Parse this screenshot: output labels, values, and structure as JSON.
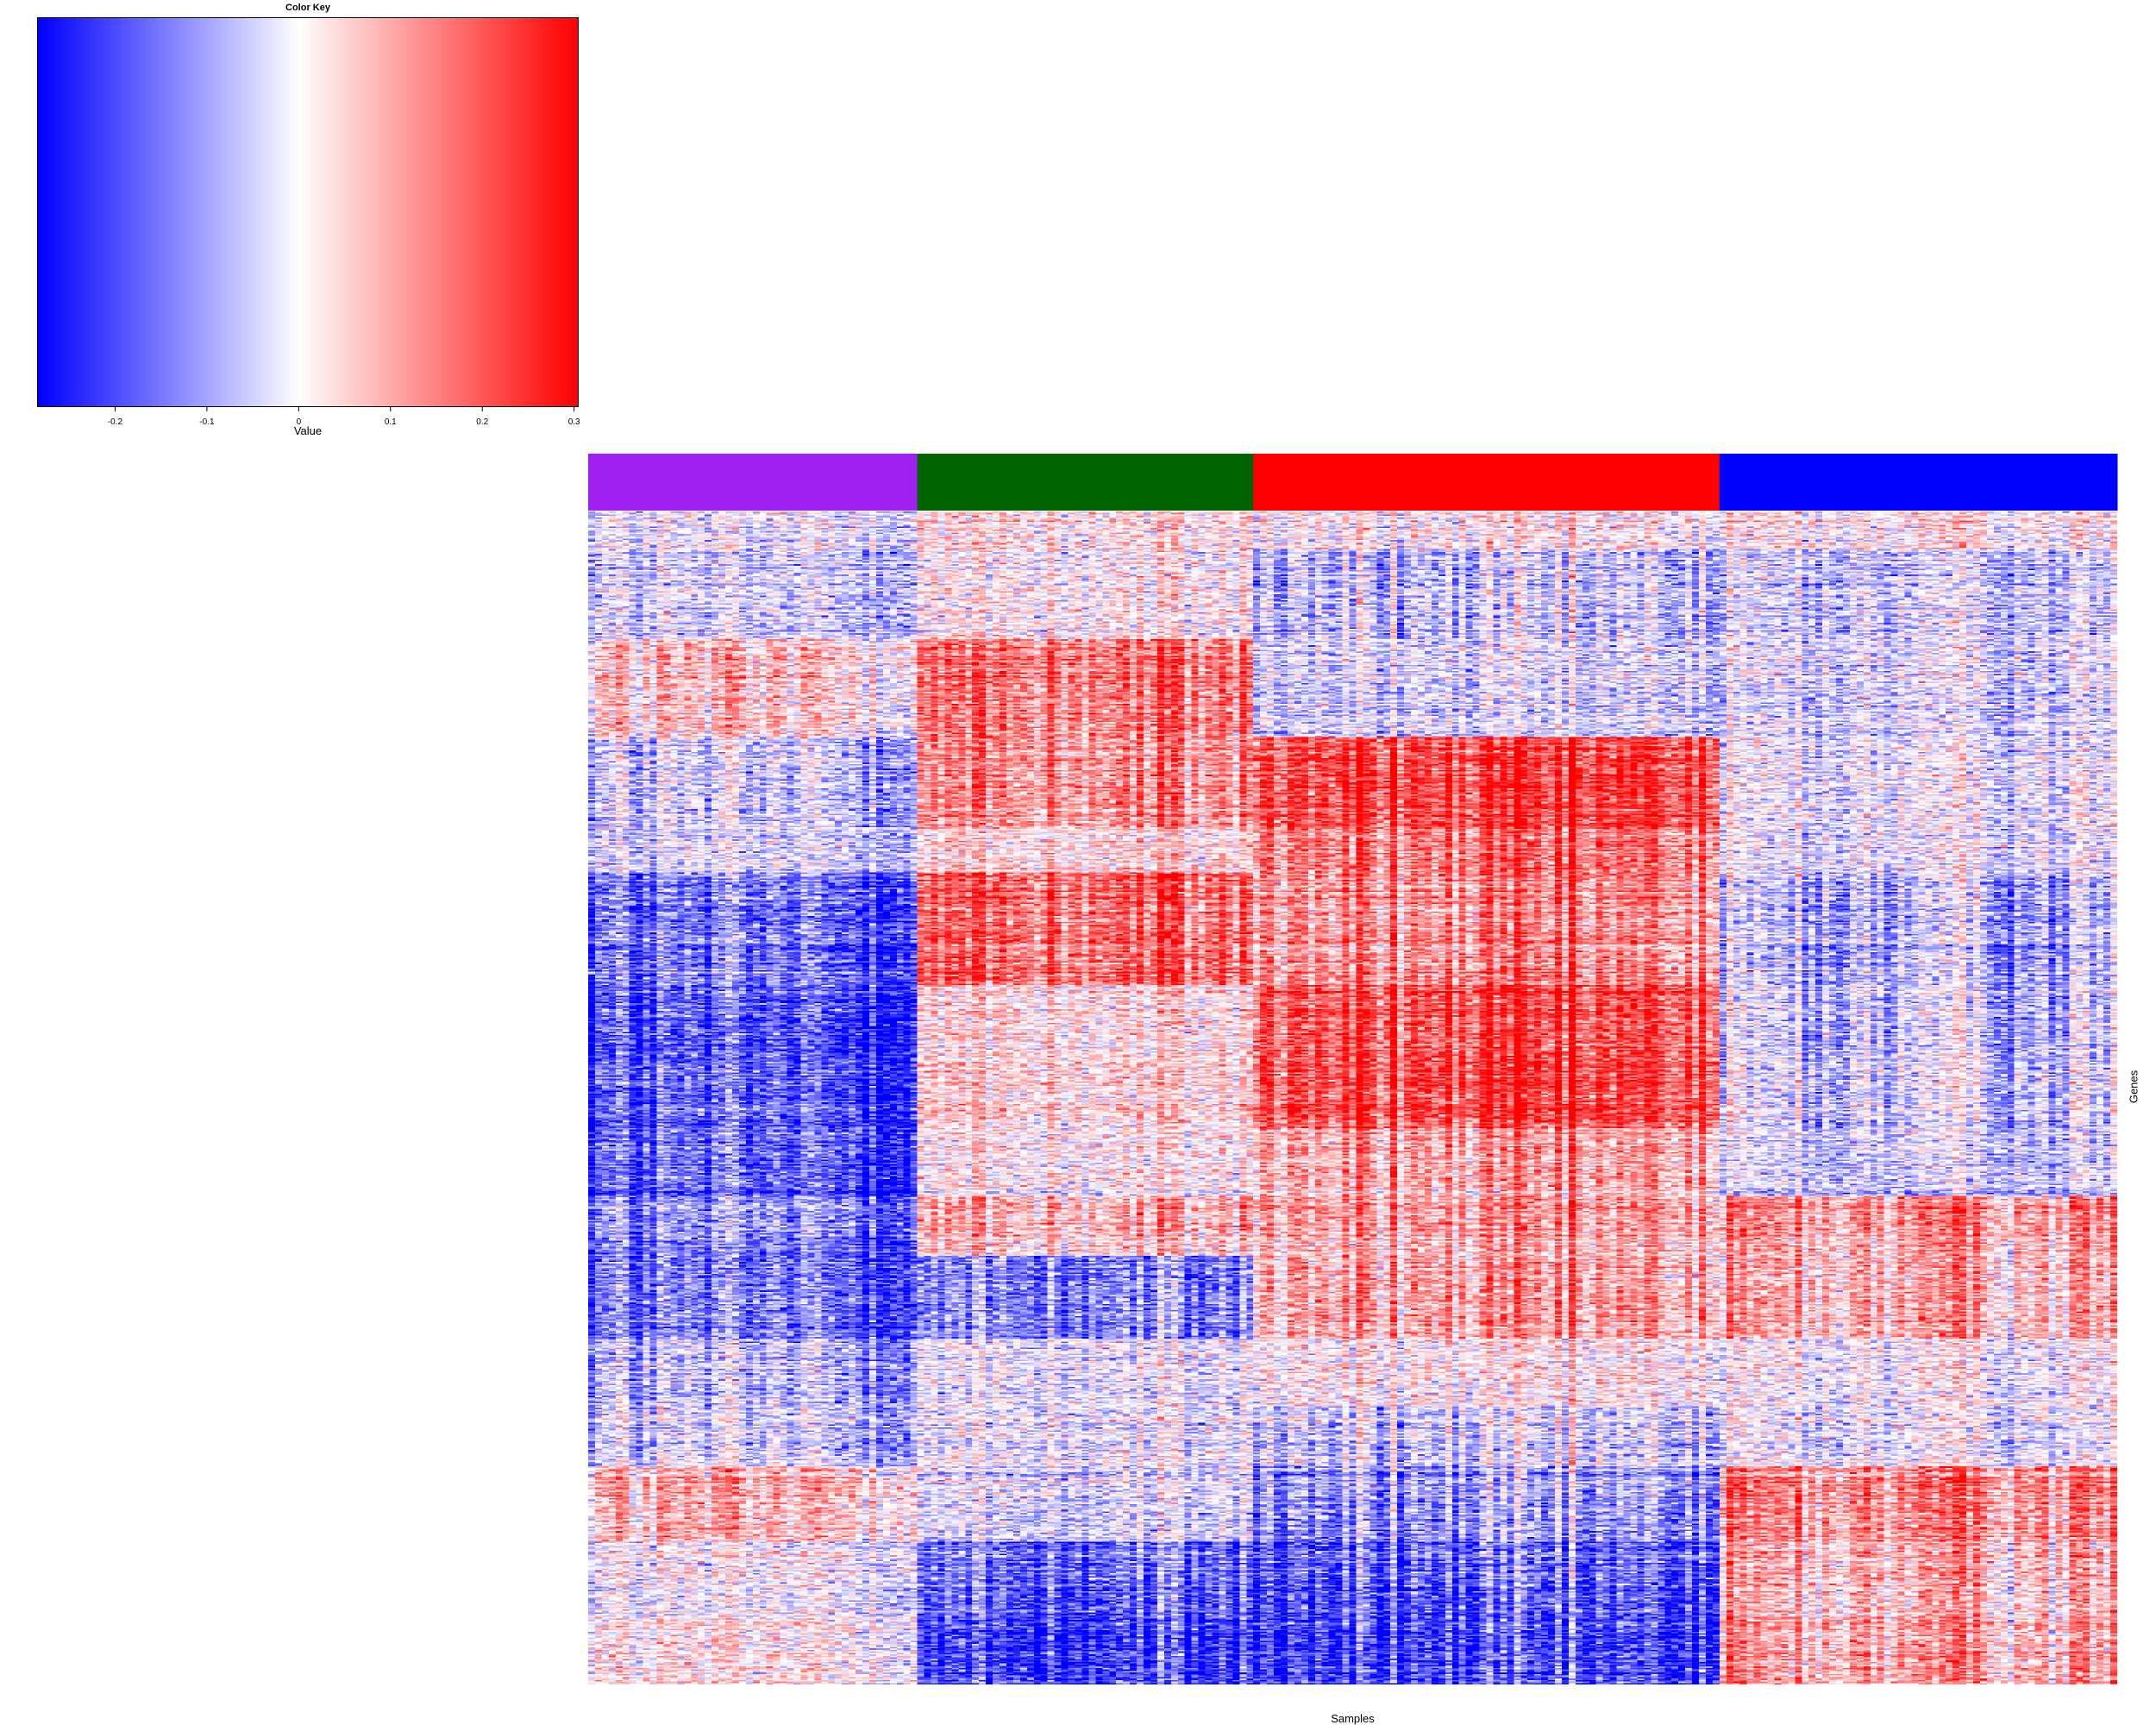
{
  "chart_data": {
    "type": "heatmap",
    "title": "",
    "xlabel": "Samples",
    "ylabel": "Genes",
    "color_key": {
      "title": "Color Key",
      "label": "Value",
      "range": [
        -0.285,
        0.305
      ],
      "ticks": [
        -0.2,
        -0.1,
        0,
        0.1,
        0.2,
        0.3
      ],
      "tick_labels": [
        "-0.2",
        "-0.1",
        "0",
        "0.1",
        "0.2",
        "0.3"
      ],
      "colors": [
        "#0000ff",
        "#ffffff",
        "#ff0000"
      ]
    },
    "sample_groups": [
      {
        "color": "#a020f0",
        "count": 48
      },
      {
        "color": "#006400",
        "count": 49
      },
      {
        "color": "#ff0000",
        "count": 68
      },
      {
        "color": "#0000ff",
        "count": 58
      }
    ],
    "gene_clusters": [
      {
        "rows": 25,
        "means": [
          -0.02,
          0.04,
          0.02,
          0.03
        ]
      },
      {
        "rows": 60,
        "means": [
          -0.05,
          0.02,
          -0.07,
          -0.05
        ]
      },
      {
        "rows": 65,
        "means": [
          0.06,
          0.16,
          -0.05,
          -0.04
        ]
      },
      {
        "rows": 60,
        "means": [
          -0.06,
          0.13,
          0.22,
          -0.02
        ]
      },
      {
        "rows": 30,
        "means": [
          -0.05,
          0.04,
          0.15,
          -0.03
        ]
      },
      {
        "rows": 75,
        "means": [
          -0.16,
          0.18,
          0.13,
          -0.08
        ]
      },
      {
        "rows": 95,
        "means": [
          -0.2,
          0.04,
          0.2,
          -0.06
        ]
      },
      {
        "rows": 45,
        "means": [
          -0.18,
          0.02,
          0.1,
          -0.05
        ]
      },
      {
        "rows": 40,
        "means": [
          -0.14,
          0.08,
          0.1,
          0.12
        ]
      },
      {
        "rows": 55,
        "means": [
          -0.16,
          -0.14,
          0.1,
          0.09
        ]
      },
      {
        "rows": 45,
        "means": [
          -0.08,
          -0.02,
          0.02,
          0.0
        ]
      },
      {
        "rows": 40,
        "means": [
          -0.06,
          -0.02,
          -0.06,
          -0.02
        ]
      },
      {
        "rows": 50,
        "means": [
          0.08,
          -0.04,
          -0.12,
          0.14
        ]
      },
      {
        "rows": 50,
        "means": [
          -0.02,
          -0.18,
          -0.2,
          0.07
        ]
      },
      {
        "rows": 45,
        "means": [
          0.02,
          -0.22,
          -0.22,
          0.1
        ]
      }
    ]
  }
}
